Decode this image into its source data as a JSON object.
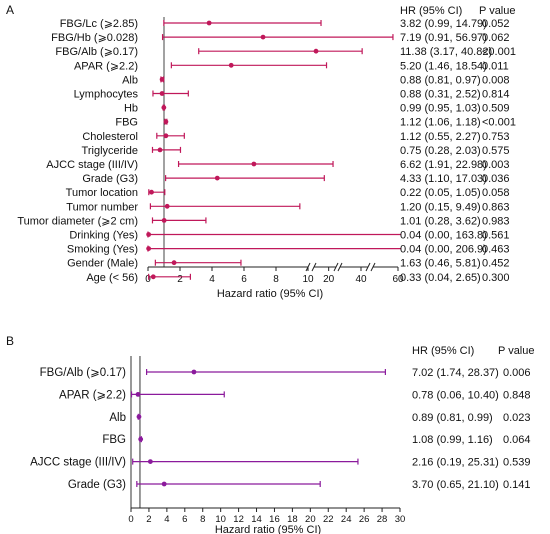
{
  "chart_data": [
    {
      "type": "forest",
      "panel_label": "A",
      "xlabel": "Hazard ratio (95% CI)",
      "col_hr_header": "HR (95% CI)",
      "col_p_header": "P value",
      "axis_segments": [
        {
          "range": [
            0,
            10
          ],
          "ticks": [
            0,
            2,
            4,
            6,
            8,
            10
          ]
        },
        {
          "range": [
            10,
            25
          ],
          "ticks": [
            20
          ]
        },
        {
          "range": [
            25,
            45
          ],
          "ticks": [
            40
          ]
        },
        {
          "range": [
            45,
            60
          ],
          "ticks": [
            60
          ]
        }
      ],
      "reference_line": 1,
      "color": "#c0185a",
      "rows": [
        {
          "label": "FBG/Lc (⩾2.85)",
          "hr": 3.82,
          "lo": 0.99,
          "hi": 14.79,
          "hr_text": "3.82 (0.99, 14.79)",
          "p": "0.052"
        },
        {
          "label": "FBG/Hb (⩾0.028)",
          "hr": 7.19,
          "lo": 0.91,
          "hi": 56.97,
          "hr_text": "7.19 (0.91, 56.97)",
          "p": "0.062"
        },
        {
          "label": "FBG/Alb (⩾0.17)",
          "hr": 11.38,
          "lo": 3.17,
          "hi": 40.82,
          "hr_text": "11.38 (3.17, 40.82)",
          "p": "<0.001"
        },
        {
          "label": "APAR (⩾2.2)",
          "hr": 5.2,
          "lo": 1.46,
          "hi": 18.54,
          "hr_text": "5.20 (1.46, 18.54)",
          "p": "0.011"
        },
        {
          "label": "Alb",
          "hr": 0.88,
          "lo": 0.81,
          "hi": 0.97,
          "hr_text": "0.88 (0.81, 0.97)",
          "p": "0.008"
        },
        {
          "label": "Lymphocytes",
          "hr": 0.88,
          "lo": 0.31,
          "hi": 2.52,
          "hr_text": "0.88 (0.31, 2.52)",
          "p": "0.814"
        },
        {
          "label": "Hb",
          "hr": 0.99,
          "lo": 0.95,
          "hi": 1.03,
          "hr_text": "0.99 (0.95, 1.03)",
          "p": "0.509"
        },
        {
          "label": "FBG",
          "hr": 1.12,
          "lo": 1.06,
          "hi": 1.18,
          "hr_text": "1.12 (1.06, 1.18)",
          "p": "<0.001"
        },
        {
          "label": "Cholesterol",
          "hr": 1.12,
          "lo": 0.55,
          "hi": 2.27,
          "hr_text": "1.12 (0.55, 2.27)",
          "p": "0.753"
        },
        {
          "label": "Triglyceride",
          "hr": 0.75,
          "lo": 0.28,
          "hi": 2.03,
          "hr_text": "0.75 (0.28, 2.03)",
          "p": "0.575"
        },
        {
          "label": "AJCC stage (III/IV)",
          "hr": 6.62,
          "lo": 1.91,
          "hi": 22.98,
          "hr_text": "6.62 (1.91, 22.98)",
          "p": "0.003"
        },
        {
          "label": "Grade (G3)",
          "hr": 4.33,
          "lo": 1.1,
          "hi": 17.03,
          "hr_text": "4.33 (1.10, 17.03)",
          "p": "0.036"
        },
        {
          "label": "Tumor location",
          "hr": 0.22,
          "lo": 0.05,
          "hi": 1.05,
          "hr_text": "0.22 (0.05, 1.05)",
          "p": "0.058"
        },
        {
          "label": "Tumor number",
          "hr": 1.2,
          "lo": 0.15,
          "hi": 9.49,
          "hr_text": "1.20 (0.15, 9.49)",
          "p": "0.863"
        },
        {
          "label": "Tumor diameter (⩾2 cm)",
          "hr": 1.01,
          "lo": 0.28,
          "hi": 3.62,
          "hr_text": "1.01 (0.28, 3.62)",
          "p": "0.983"
        },
        {
          "label": "Drinking (Yes)",
          "hr": 0.04,
          "lo": 0.0,
          "hi": 163.8,
          "hr_text": "0.04 (0.00, 163.8)",
          "p": "0.561"
        },
        {
          "label": "Smoking (Yes)",
          "hr": 0.04,
          "lo": 0.0,
          "hi": 206.9,
          "hr_text": "0.04 (0.00, 206.9)",
          "p": "0.463"
        },
        {
          "label": "Gender (Male)",
          "hr": 1.63,
          "lo": 0.46,
          "hi": 5.81,
          "hr_text": "1.63 (0.46, 5.81)",
          "p": "0.452"
        },
        {
          "label": "Age (< 56)",
          "hr": 0.33,
          "lo": 0.04,
          "hi": 2.65,
          "hr_text": "0.33 (0.04, 2.65)",
          "p": "0.300"
        }
      ]
    },
    {
      "type": "forest",
      "panel_label": "B",
      "xlabel": "Hazard ratio (95% CI)",
      "col_hr_header": "HR (95% CI)",
      "col_p_header": "P value",
      "xlim": [
        0,
        30
      ],
      "ticks": [
        0,
        2,
        4,
        6,
        8,
        10,
        12,
        14,
        16,
        18,
        20,
        22,
        24,
        26,
        28,
        30
      ],
      "reference_line": 1,
      "color": "#8b1a9c",
      "rows": [
        {
          "label": "FBG/Alb (⩾0.17)",
          "hr": 7.02,
          "lo": 1.74,
          "hi": 28.37,
          "hr_text": "7.02 (1.74, 28.37)",
          "p": "0.006"
        },
        {
          "label": "APAR (⩾2.2)",
          "hr": 0.78,
          "lo": 0.06,
          "hi": 10.4,
          "hr_text": "0.78 (0.06, 10.40)",
          "p": "0.848"
        },
        {
          "label": "Alb",
          "hr": 0.89,
          "lo": 0.81,
          "hi": 0.99,
          "hr_text": "0.89 (0.81, 0.99)",
          "p": "0.023"
        },
        {
          "label": "FBG",
          "hr": 1.08,
          "lo": 0.99,
          "hi": 1.16,
          "hr_text": "1.08 (0.99, 1.16)",
          "p": "0.064"
        },
        {
          "label": "AJCC stage (III/IV)",
          "hr": 2.16,
          "lo": 0.19,
          "hi": 25.31,
          "hr_text": "2.16 (0.19, 25.31)",
          "p": "0.539"
        },
        {
          "label": "Grade (G3)",
          "hr": 3.7,
          "lo": 0.65,
          "hi": 21.1,
          "hr_text": "3.70 (0.65, 21.10)",
          "p": "0.141"
        }
      ]
    }
  ]
}
